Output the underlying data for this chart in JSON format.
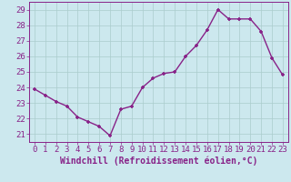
{
  "x": [
    0,
    1,
    2,
    3,
    4,
    5,
    6,
    7,
    8,
    9,
    10,
    11,
    12,
    13,
    14,
    15,
    16,
    17,
    18,
    19,
    20,
    21,
    22,
    23
  ],
  "y": [
    23.9,
    23.5,
    23.1,
    22.8,
    22.1,
    21.8,
    21.5,
    20.9,
    22.6,
    22.8,
    24.0,
    24.6,
    24.9,
    25.0,
    26.0,
    26.7,
    27.7,
    29.0,
    28.4,
    28.4,
    28.4,
    27.6,
    25.9,
    24.8
  ],
  "line_color": "#882288",
  "marker": "+",
  "xlabel": "Windchill (Refroidissement éolien,°C)",
  "ylim": [
    20.5,
    29.5
  ],
  "yticks": [
    21,
    22,
    23,
    24,
    25,
    26,
    27,
    28,
    29
  ],
  "xticks": [
    0,
    1,
    2,
    3,
    4,
    5,
    6,
    7,
    8,
    9,
    10,
    11,
    12,
    13,
    14,
    15,
    16,
    17,
    18,
    19,
    20,
    21,
    22,
    23
  ],
  "bg_color": "#cce8ee",
  "grid_color": "#aacccc",
  "tick_fontsize": 6.5,
  "xlabel_fontsize": 7.0,
  "marker_size": 3.5,
  "linewidth": 1.0
}
